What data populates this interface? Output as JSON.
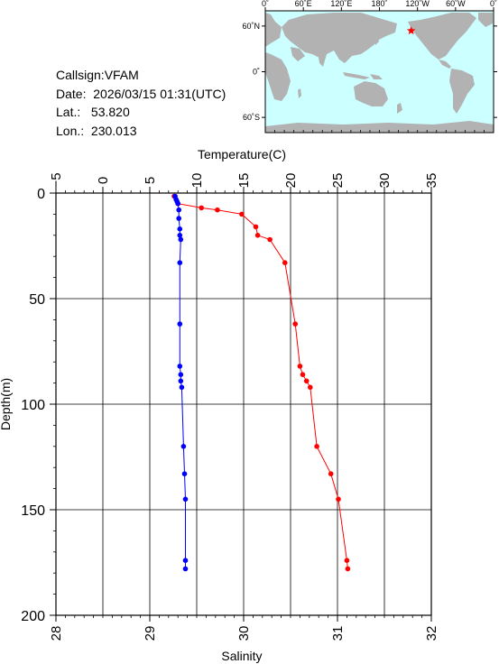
{
  "info": {
    "callsign": "Callsign:VFAM",
    "date": "Date:  2026/03/15 01:31(UTC)",
    "lat": "Lat.:   53.820",
    "lon": "Lon.:  230.013"
  },
  "map": {
    "lon_labels": [
      "0˚",
      "60˚E",
      "120˚E",
      "180˚",
      "120˚W",
      "60˚W",
      "0˚"
    ],
    "lat_labels": [
      "60˚N",
      "0˚",
      "60˚S"
    ],
    "ocean_color": "#ccffff",
    "land_color": "#b2b2b2",
    "marker": {
      "lon": 230.013,
      "lat": 53.82,
      "color": "#ff0000"
    }
  },
  "chart_data": {
    "type": "line",
    "top_axis": {
      "label": "Temperature(C)",
      "range": [
        -5,
        35
      ],
      "ticks": [
        "−5",
        "0",
        "5",
        "10",
        "15",
        "20",
        "25",
        "30",
        "35"
      ]
    },
    "bottom_axis": {
      "label": "Salinity",
      "range": [
        28,
        32
      ],
      "ticks": [
        "28",
        "29",
        "30",
        "31",
        "32"
      ]
    },
    "y_axis": {
      "label": "Depth(m)",
      "range": [
        0,
        200
      ],
      "inverted": true,
      "ticks": [
        "0",
        "50",
        "100",
        "150",
        "200"
      ]
    },
    "grid": true,
    "series": [
      {
        "axis": "temperature",
        "color": "#ff0000",
        "points": [
          [
            7.6,
            1.5
          ],
          [
            8.0,
            5
          ],
          [
            10.5,
            7
          ],
          [
            12.2,
            8
          ],
          [
            14.8,
            10
          ],
          [
            16.3,
            16
          ],
          [
            16.5,
            20
          ],
          [
            17.8,
            22
          ],
          [
            19.4,
            33
          ],
          [
            20.5,
            62
          ],
          [
            21.0,
            82
          ],
          [
            21.3,
            86
          ],
          [
            21.7,
            89
          ],
          [
            22.1,
            92
          ],
          [
            22.8,
            120
          ],
          [
            24.3,
            133
          ],
          [
            25.1,
            145
          ],
          [
            26.0,
            174
          ],
          [
            26.1,
            178
          ]
        ]
      },
      {
        "axis": "salinity",
        "color": "#0000ff",
        "points": [
          [
            29.27,
            1.5
          ],
          [
            29.28,
            3
          ],
          [
            29.29,
            4
          ],
          [
            29.3,
            5
          ],
          [
            29.31,
            8
          ],
          [
            29.31,
            12
          ],
          [
            29.32,
            17
          ],
          [
            29.32,
            20
          ],
          [
            29.33,
            22
          ],
          [
            29.32,
            33
          ],
          [
            29.32,
            62
          ],
          [
            29.32,
            82
          ],
          [
            29.33,
            86
          ],
          [
            29.33,
            89
          ],
          [
            29.34,
            92
          ],
          [
            29.36,
            120
          ],
          [
            29.37,
            133
          ],
          [
            29.38,
            145
          ],
          [
            29.38,
            174
          ],
          [
            29.38,
            178
          ]
        ]
      }
    ]
  }
}
